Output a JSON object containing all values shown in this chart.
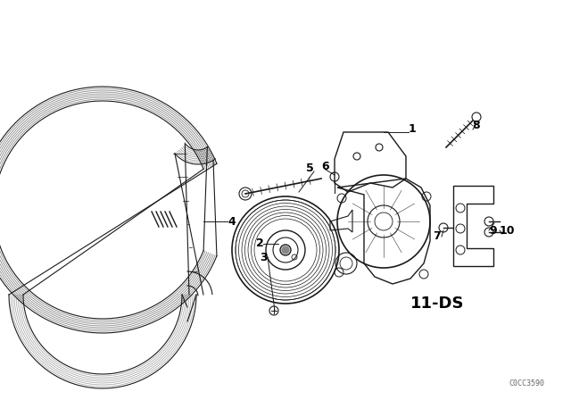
{
  "bg_color": "#ffffff",
  "line_color": "#1a1a1a",
  "label_color": "#000000",
  "fig_width": 6.4,
  "fig_height": 4.48,
  "dpi": 100,
  "watermark": "C0CC3590",
  "diagram_label": "11-DS"
}
